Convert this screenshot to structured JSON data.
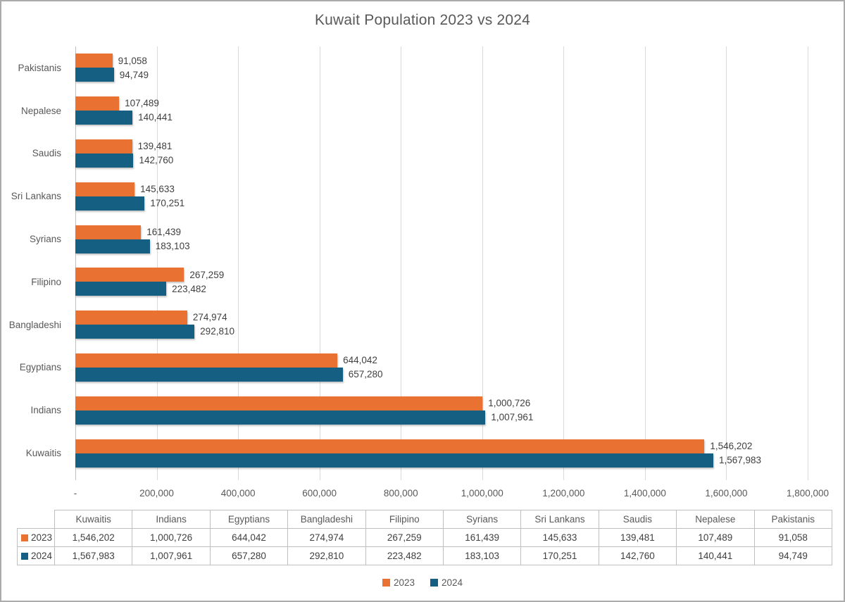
{
  "frame": {
    "border_color": "#ABABAB",
    "background": "#FFFFFF"
  },
  "chart_data": {
    "type": "bar",
    "orientation": "horizontal",
    "title": "Kuwait Population 2023 vs 2024",
    "categories": [
      "Pakistanis",
      "Nepalese",
      "Saudis",
      "Sri Lankans",
      "Syrians",
      "Filipino",
      "Bangladeshi",
      "Egyptians",
      "Indians",
      "Kuwaitis"
    ],
    "series": [
      {
        "name": "2023",
        "color": "#E97132",
        "values": [
          91058,
          107489,
          139481,
          145633,
          161439,
          267259,
          274974,
          644042,
          1000726,
          1546202
        ],
        "labels": [
          "91,058",
          "107,489",
          "139,481",
          "145,633",
          "161,439",
          "267,259",
          "274,974",
          "644,042",
          "1,000,726",
          "1,546,202"
        ]
      },
      {
        "name": "2024",
        "color": "#156082",
        "values": [
          94749,
          140441,
          142760,
          170251,
          183103,
          223482,
          292810,
          657280,
          1007961,
          1567983
        ],
        "labels": [
          "94,749",
          "140,441",
          "142,760",
          "170,251",
          "183,103",
          "223,482",
          "292,810",
          "657,280",
          "1,007,961",
          "1,567,983"
        ]
      }
    ],
    "x_axis": {
      "min": 0,
      "max": 1800000,
      "tick_step": 200000,
      "tick_labels": [
        "-",
        "200,000",
        "400,000",
        "600,000",
        "800,000",
        "1,000,000",
        "1,200,000",
        "1,400,000",
        "1,600,000",
        "1,800,000"
      ]
    },
    "grid": true,
    "data_labels": "outside-end",
    "legend_position": "bottom"
  },
  "data_table": {
    "columns": [
      "Kuwaitis",
      "Indians",
      "Egyptians",
      "Bangladeshi",
      "Filipino",
      "Syrians",
      "Sri Lankans",
      "Saudis",
      "Nepalese",
      "Pakistanis"
    ],
    "rows": [
      {
        "name": "2023",
        "swatch_color": "#E97132",
        "values": [
          "1,546,202",
          "1,000,726",
          "644,042",
          "274,974",
          "267,259",
          "161,439",
          "145,633",
          "139,481",
          "107,489",
          "91,058"
        ]
      },
      {
        "name": "2024",
        "swatch_color": "#156082",
        "values": [
          "1,567,983",
          "1,007,961",
          "657,280",
          "292,810",
          "223,482",
          "183,103",
          "170,251",
          "142,760",
          "140,441",
          "94,749"
        ]
      }
    ]
  },
  "legend": {
    "items": [
      {
        "label": "2023",
        "color": "#E97132"
      },
      {
        "label": "2024",
        "color": "#156082"
      }
    ]
  },
  "style_colors": {
    "title_text": "#595959",
    "axis_text": "#595959",
    "data_label_text": "#404040",
    "gridline": "#D9D9D9",
    "table_border": "#BFBFBF"
  }
}
